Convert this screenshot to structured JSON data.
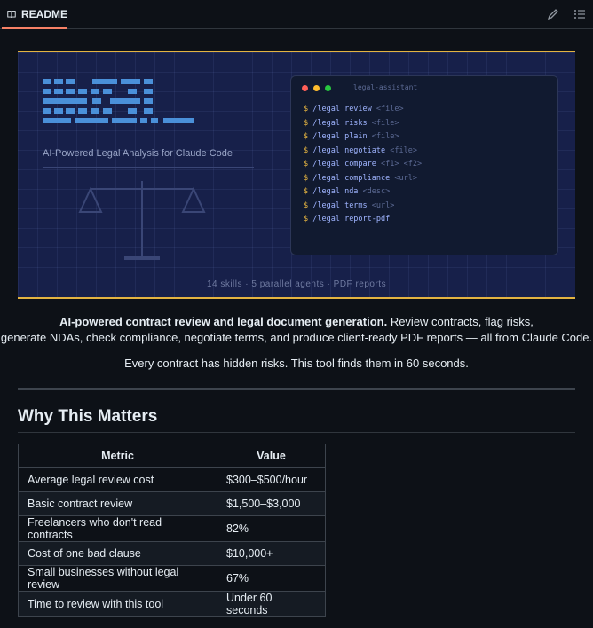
{
  "header": {
    "tab_label": "README",
    "icons": [
      "book-icon",
      "pencil-icon",
      "list-icon"
    ]
  },
  "banner": {
    "tagline": "AI-Powered Legal Analysis for Claude Code",
    "footer": "14 skills · 5 parallel agents · PDF reports",
    "terminal_title": "legal-assistant",
    "prompt_symbol": "$",
    "commands": [
      {
        "cmd": "/legal review",
        "arg": "<file>"
      },
      {
        "cmd": "/legal risks",
        "arg": "<file>"
      },
      {
        "cmd": "/legal plain",
        "arg": "<file>"
      },
      {
        "cmd": "/legal negotiate",
        "arg": "<file>"
      },
      {
        "cmd": "/legal compare",
        "arg": "<f1> <f2>"
      },
      {
        "cmd": "/legal compliance",
        "arg": "<url>"
      },
      {
        "cmd": "/legal nda",
        "arg": "<desc>"
      },
      {
        "cmd": "/legal terms",
        "arg": "<url>"
      },
      {
        "cmd": "/legal report-pdf",
        "arg": ""
      }
    ],
    "colors": {
      "accent": "#e3b341",
      "background": "#17204a",
      "logo_blocks": "#4a90d9"
    }
  },
  "intro": {
    "bold": "AI-powered contract review and legal document generation.",
    "line1_rest": " Review contracts, flag risks,",
    "line2": "generate NDAs, check compliance, negotiate terms, and produce client-ready PDF reports — all from Claude Code."
  },
  "tagline": "Every contract has hidden risks. This tool finds them in 60 seconds.",
  "section": {
    "heading": "Why This Matters",
    "table": {
      "headers": [
        "Metric",
        "Value"
      ],
      "rows": [
        [
          "Average legal review cost",
          "$300–$500/hour"
        ],
        [
          "Basic contract review",
          "$1,500–$3,000"
        ],
        [
          "Freelancers who don't read contracts",
          "82%"
        ],
        [
          "Cost of one bad clause",
          "$10,000+"
        ],
        [
          "Small businesses without legal review",
          "67%"
        ],
        [
          "Time to review with this tool",
          "Under 60 seconds"
        ]
      ]
    }
  }
}
